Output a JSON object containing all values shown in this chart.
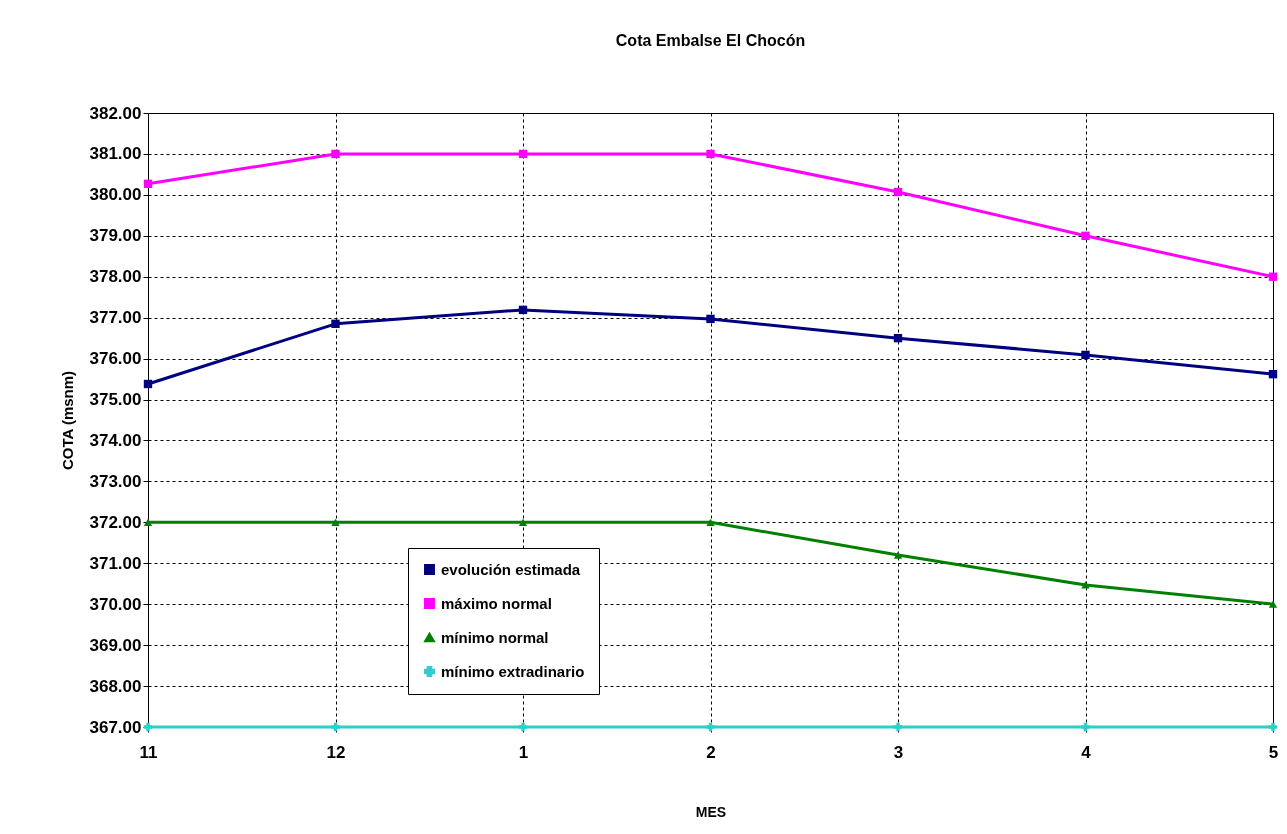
{
  "chart_data": {
    "type": "line",
    "title": "Cota Embalse El Chocón",
    "xlabel": "MES",
    "ylabel": "COTA (msnm)",
    "categories": [
      "11",
      "12",
      "1",
      "2",
      "3",
      "4",
      "5"
    ],
    "series": [
      {
        "name": "evolución estimada",
        "color": "#000080",
        "marker": "square",
        "values": [
          375.38,
          376.85,
          377.19,
          376.97,
          376.5,
          376.09,
          375.62
        ]
      },
      {
        "name": "máximo normal",
        "color": "#ff00ff",
        "marker": "square",
        "values": [
          380.27,
          381,
          381,
          381,
          380.07,
          379,
          378
        ]
      },
      {
        "name": "mínimo normal",
        "color": "#008000",
        "marker": "triangle",
        "values": [
          372,
          372,
          372,
          372,
          371.2,
          370.47,
          370
        ]
      },
      {
        "name": "mínimo extradinario",
        "color": "#33cccc",
        "marker": "cross",
        "values": [
          367,
          367,
          367,
          367,
          367,
          367,
          367
        ]
      }
    ],
    "ylim": [
      367,
      382
    ],
    "yticks": [
      {
        "value": 367,
        "label": "367.00"
      },
      {
        "value": 368,
        "label": "368.00"
      },
      {
        "value": 369,
        "label": "369.00"
      },
      {
        "value": 370,
        "label": "370.00"
      },
      {
        "value": 371,
        "label": "371.00"
      },
      {
        "value": 372,
        "label": "372.00"
      },
      {
        "value": 373,
        "label": "373.00"
      },
      {
        "value": 374,
        "label": "374.00"
      },
      {
        "value": 375,
        "label": "375.00"
      },
      {
        "value": 376,
        "label": "376.00"
      },
      {
        "value": 377,
        "label": "377.00"
      },
      {
        "value": 378,
        "label": "378.00"
      },
      {
        "value": 379,
        "label": "379.00"
      },
      {
        "value": 380,
        "label": "380.00"
      },
      {
        "value": 381,
        "label": "381.00"
      },
      {
        "value": 382,
        "label": "382.00"
      }
    ],
    "grid": true,
    "legend": "bottom left",
    "line_style": "solid"
  }
}
